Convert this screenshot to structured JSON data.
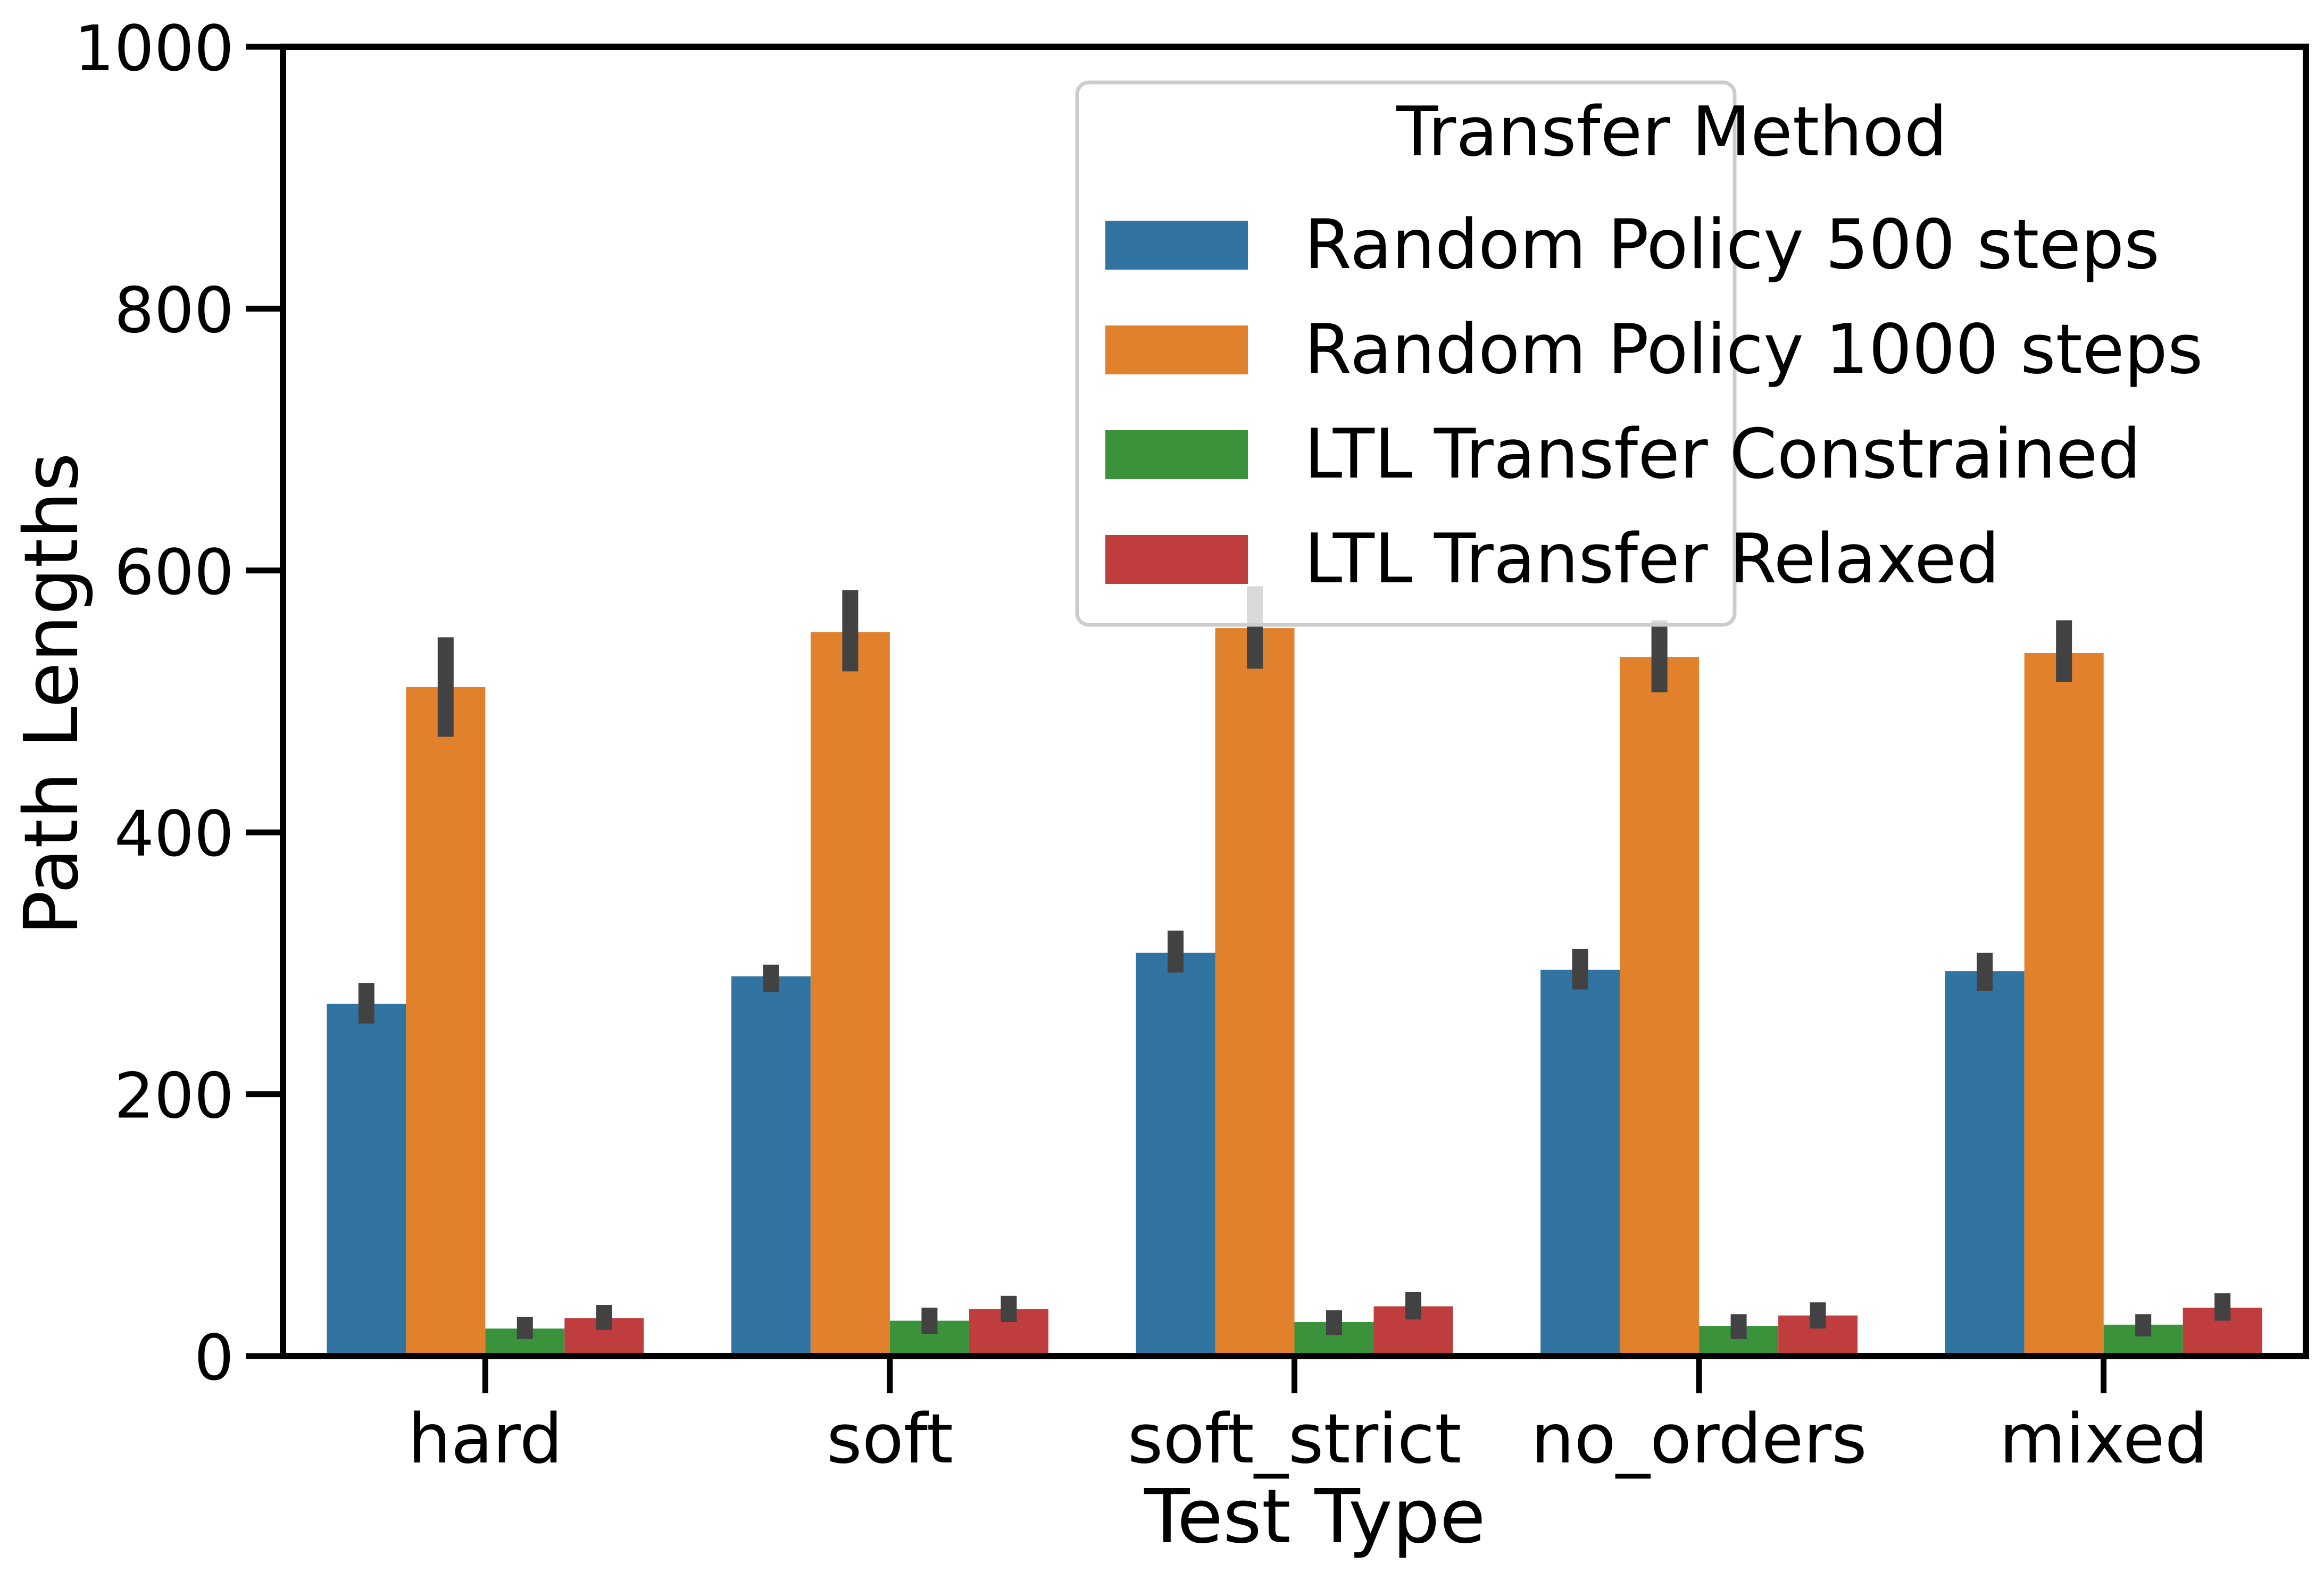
{
  "chart_data": {
    "type": "bar",
    "title": "",
    "xlabel": "Test Type",
    "ylabel": "Path Lengths",
    "ylim": [
      0,
      1000
    ],
    "yticks": [
      0,
      200,
      400,
      600,
      800,
      1000
    ],
    "categories": [
      "hard",
      "soft",
      "soft_strict",
      "no_orders",
      "mixed"
    ],
    "legend": {
      "title": "Transfer Method",
      "position": "top-right"
    },
    "grid": false,
    "series": [
      {
        "name": "Random Policy 500 steps",
        "color": "#3274a1",
        "values": [
          269,
          290,
          308,
          295,
          294
        ],
        "error": [
          [
            254,
            285
          ],
          [
            278,
            299
          ],
          [
            293,
            325
          ],
          [
            280,
            311
          ],
          [
            279,
            308
          ]
        ]
      },
      {
        "name": "Random Policy 1000 steps",
        "color": "#e1812c",
        "values": [
          511,
          553,
          556,
          534,
          537
        ],
        "error": [
          [
            473,
            549
          ],
          [
            523,
            585
          ],
          [
            525,
            588
          ],
          [
            507,
            562
          ],
          [
            515,
            562
          ]
        ]
      },
      {
        "name": "LTL Transfer Constrained",
        "color": "#3a923a",
        "values": [
          21,
          27,
          26,
          23,
          24
        ],
        "error": [
          [
            13,
            30
          ],
          [
            17,
            37
          ],
          [
            16,
            35
          ],
          [
            13,
            32
          ],
          [
            15,
            32
          ]
        ]
      },
      {
        "name": "LTL Transfer Relaxed",
        "color": "#c03d3e",
        "values": [
          29,
          36,
          38,
          31,
          37
        ],
        "error": [
          [
            20,
            39
          ],
          [
            26,
            46
          ],
          [
            28,
            49
          ],
          [
            21,
            41
          ],
          [
            27,
            48
          ]
        ]
      }
    ]
  }
}
